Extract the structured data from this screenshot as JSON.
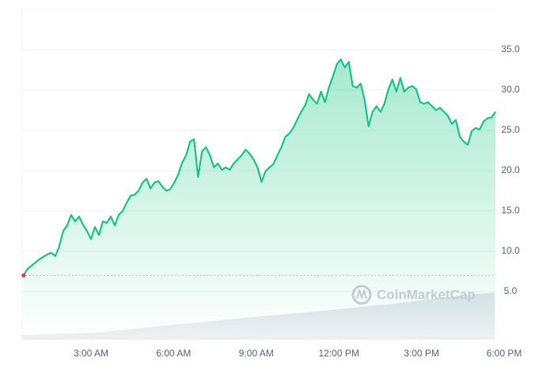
{
  "chart_data": {
    "type": "line",
    "watermark": "CoinMarketCap",
    "color": "#16c784",
    "start_color": "#ea3943",
    "reference_line": 7.0,
    "xlim": [
      0.5,
      18
    ],
    "ylim": [
      -1,
      40
    ],
    "xticks": [
      {
        "value": 3,
        "label": "3:00 AM"
      },
      {
        "value": 6,
        "label": "6:00 AM"
      },
      {
        "value": 9,
        "label": "9:00 AM"
      },
      {
        "value": 12,
        "label": "12:00 PM"
      },
      {
        "value": 15,
        "label": "3:00 PM"
      },
      {
        "value": 18,
        "label": "6:00 PM"
      }
    ],
    "yticks": [
      {
        "value": 5,
        "label": "5.0"
      },
      {
        "value": 10,
        "label": "10.0"
      },
      {
        "value": 15,
        "label": "15.0"
      },
      {
        "value": 20,
        "label": "20.0"
      },
      {
        "value": 25,
        "label": "25.0"
      },
      {
        "value": 30,
        "label": "30.0"
      },
      {
        "value": 35,
        "label": "35.0"
      }
    ],
    "grid": true,
    "x": [
      0.55,
      0.694,
      0.838,
      0.982,
      1.126,
      1.27,
      1.414,
      1.558,
      1.702,
      1.846,
      1.99,
      2.134,
      2.278,
      2.422,
      2.566,
      2.71,
      2.854,
      2.998,
      3.142,
      3.286,
      3.43,
      3.574,
      3.718,
      3.862,
      4.006,
      4.15,
      4.294,
      4.438,
      4.582,
      4.726,
      4.87,
      5.014,
      5.158,
      5.302,
      5.446,
      5.59,
      5.734,
      5.878,
      6.022,
      6.166,
      6.31,
      6.454,
      6.598,
      6.742,
      6.886,
      7.03,
      7.174,
      7.318,
      7.462,
      7.606,
      7.75,
      7.894,
      8.038,
      8.182,
      8.326,
      8.47,
      8.614,
      8.758,
      8.902,
      9.046,
      9.19,
      9.334,
      9.478,
      9.622,
      9.766,
      9.91,
      10.054,
      10.198,
      10.342,
      10.486,
      10.63,
      10.774,
      10.918,
      11.062,
      11.206,
      11.35,
      11.494,
      11.638,
      11.782,
      11.926,
      12.07,
      12.214,
      12.358,
      12.502,
      12.646,
      12.79,
      12.934,
      13.078,
      13.222,
      13.366,
      13.51,
      13.654,
      13.798,
      13.942,
      14.086,
      14.23,
      14.374,
      14.518,
      14.662,
      14.806,
      14.95,
      15.094,
      15.238,
      15.382,
      15.526,
      15.67,
      15.814,
      15.958,
      16.102,
      16.246,
      16.39,
      16.534,
      16.678,
      16.822,
      16.966,
      17.11,
      17.254,
      17.398,
      17.542,
      17.686
    ],
    "values": [
      7.0,
      7.8,
      8.2,
      8.6,
      9.0,
      9.3,
      9.6,
      9.8,
      9.4,
      10.6,
      12.5,
      13.2,
      14.5,
      13.7,
      14.3,
      13.3,
      12.5,
      11.5,
      13.0,
      12.0,
      13.7,
      13.5,
      14.3,
      13.2,
      14.5,
      15.0,
      16.0,
      16.9,
      17.0,
      17.5,
      18.5,
      19.0,
      17.8,
      18.5,
      18.7,
      18.0,
      17.5,
      17.7,
      18.5,
      19.5,
      21.0,
      21.9,
      23.6,
      23.9,
      19.2,
      22.4,
      22.9,
      21.9,
      20.4,
      20.9,
      20.1,
      20.4,
      20.1,
      20.9,
      21.4,
      21.9,
      22.6,
      22.1,
      21.4,
      20.4,
      18.6,
      19.9,
      20.4,
      20.8,
      21.9,
      22.9,
      24.2,
      24.6,
      25.3,
      26.3,
      27.3,
      28.1,
      29.5,
      28.8,
      28.3,
      29.8,
      28.5,
      30.3,
      31.7,
      33.2,
      33.8,
      32.8,
      33.5,
      30.5,
      30.3,
      30.8,
      28.8,
      25.5,
      27.3,
      28.0,
      27.3,
      28.3,
      30.1,
      31.3,
      29.8,
      31.5,
      29.8,
      30.3,
      30.5,
      30.1,
      28.5,
      28.3,
      28.5,
      28.0,
      27.5,
      27.8,
      27.3,
      26.8,
      25.8,
      26.3,
      24.2,
      23.6,
      23.2,
      24.9,
      25.3,
      25.1,
      26.1,
      26.5,
      26.6,
      27.3
    ]
  }
}
